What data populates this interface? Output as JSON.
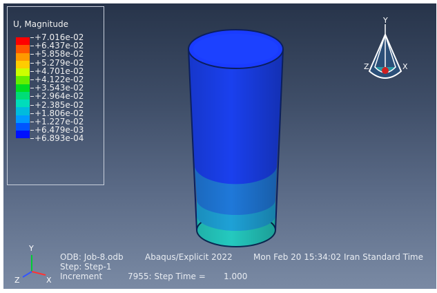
{
  "legend": {
    "title": "U, Magnitude",
    "values": [
      "+7.016e-02",
      "+6.437e-02",
      "+5.858e-02",
      "+5.279e-02",
      "+4.701e-02",
      "+4.122e-02",
      "+3.543e-02",
      "+2.964e-02",
      "+2.385e-02",
      "+1.806e-02",
      "+1.227e-02",
      "+6.479e-03",
      "+6.893e-04"
    ],
    "colors": [
      "#ff0000",
      "#ff5500",
      "#ff9900",
      "#ffcc00",
      "#ccff00",
      "#66ee00",
      "#00dd22",
      "#00dd77",
      "#00ddbb",
      "#00bbdd",
      "#0099ff",
      "#0055ff",
      "#0011ff"
    ]
  },
  "triad_main": {
    "y": "Y",
    "z": "Z",
    "x": "X"
  },
  "triad_small": {
    "y": "Y",
    "z": "Z",
    "x": "X"
  },
  "info": {
    "odb": "ODB: Job-8.odb",
    "solver": "Abaqus/Explicit 2022",
    "date": "Mon Feb 20 15:34:02 Iran Standard Time",
    "step": "Step: Step-1",
    "increment_label": "Increment",
    "increment_value": "7955: Step Time =",
    "step_time": "1.000"
  },
  "colors": {
    "cylinder_top": "#1a3cff",
    "cylinder_mid": "#1a4fe0",
    "cylinder_band1": "#1e7ad8",
    "cylinder_band2": "#1e9ad6",
    "cylinder_base": "#22c8c0"
  }
}
